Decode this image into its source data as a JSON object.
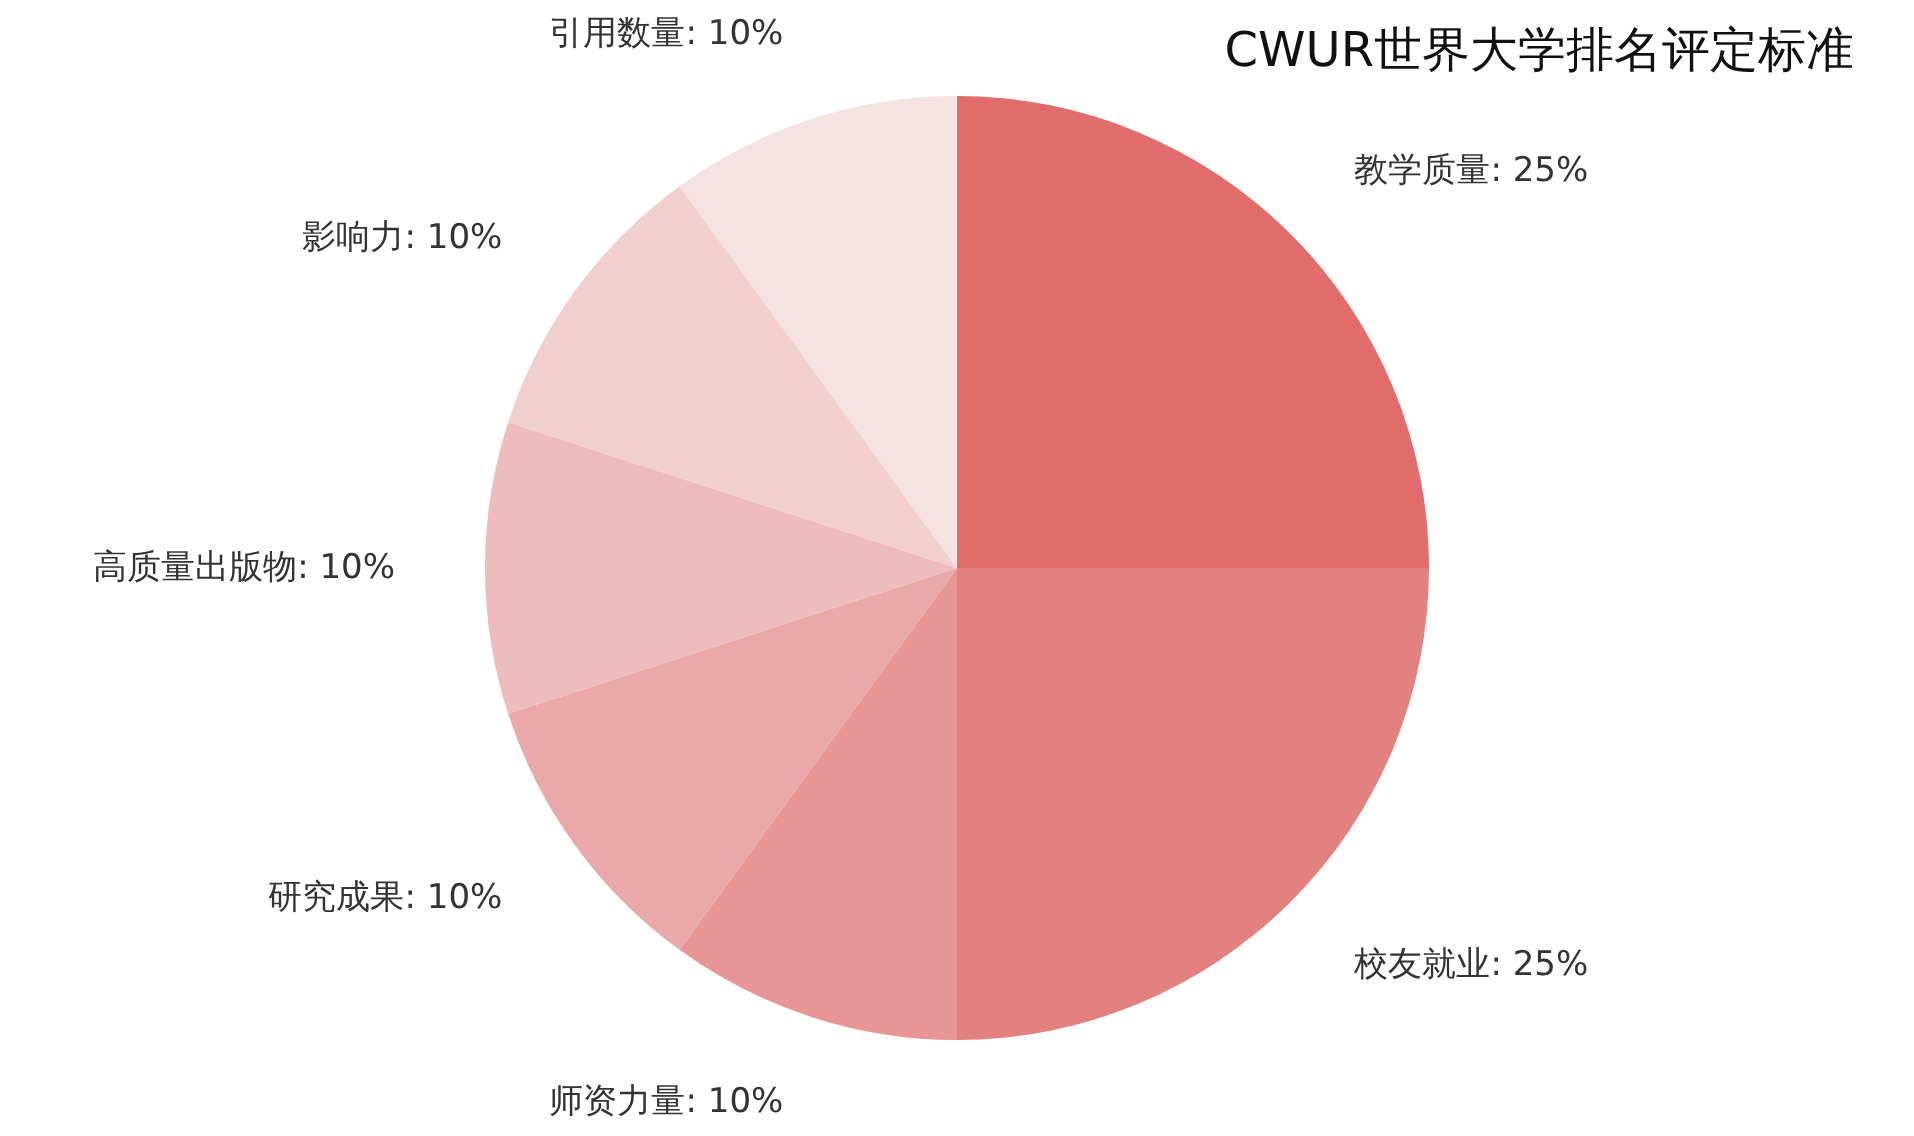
{
  "chart_data": {
    "type": "pie",
    "title": "CWUR世界大学排名评定标准",
    "categories": [
      "教学质量",
      "校友就业",
      "师资力量",
      "研究成果",
      "高质量出版物",
      "影响力",
      "引用数量"
    ],
    "values": [
      25,
      25,
      10,
      10,
      10,
      10,
      10
    ],
    "value_labels": [
      "25%",
      "25%",
      "10%",
      "10%",
      "10%",
      "10%",
      "10%"
    ],
    "colors": [
      "#e06c6c",
      "#e38181",
      "#e79595",
      "#eaa8a8",
      "#eebcbc",
      "#f1cfcf",
      "#f5e2e2"
    ]
  }
}
